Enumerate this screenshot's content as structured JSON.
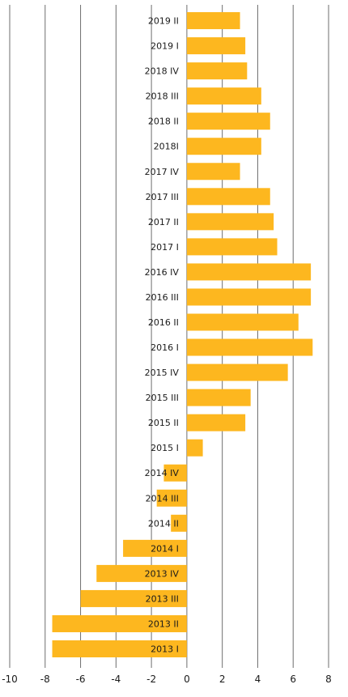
{
  "chart_data": {
    "type": "bar",
    "orientation": "horizontal",
    "title": "",
    "xlabel": "",
    "ylabel": "",
    "xlim": [
      -10,
      8
    ],
    "xticks": [
      -10,
      -8,
      -6,
      -4,
      -2,
      0,
      2,
      4,
      6,
      8
    ],
    "grid": "vertical",
    "legend": "none",
    "bar_color": "#FDB71F",
    "categories": [
      "2019 II",
      "2019 I",
      "2018 IV",
      "2018 III",
      "2018 II",
      "2018I",
      "2017 IV",
      "2017 III",
      "2017 II",
      "2017 I",
      "2016 IV",
      "2016 III",
      "2016 II",
      "2016 I",
      "2015 IV",
      "2015 III",
      "2015 II",
      "2015 I",
      "2014 IV",
      "2014 III",
      "2014 II",
      "2014 I",
      "2013 IV",
      "2013 III",
      "2013 II",
      "2013 I"
    ],
    "values": [
      3.0,
      3.3,
      3.4,
      4.2,
      4.7,
      4.2,
      3.0,
      4.7,
      4.9,
      5.1,
      7.0,
      7.0,
      6.3,
      7.1,
      5.7,
      3.6,
      3.3,
      0.9,
      -1.3,
      -1.7,
      -0.9,
      -3.6,
      -5.1,
      -6.0,
      -7.6,
      -7.6
    ]
  }
}
